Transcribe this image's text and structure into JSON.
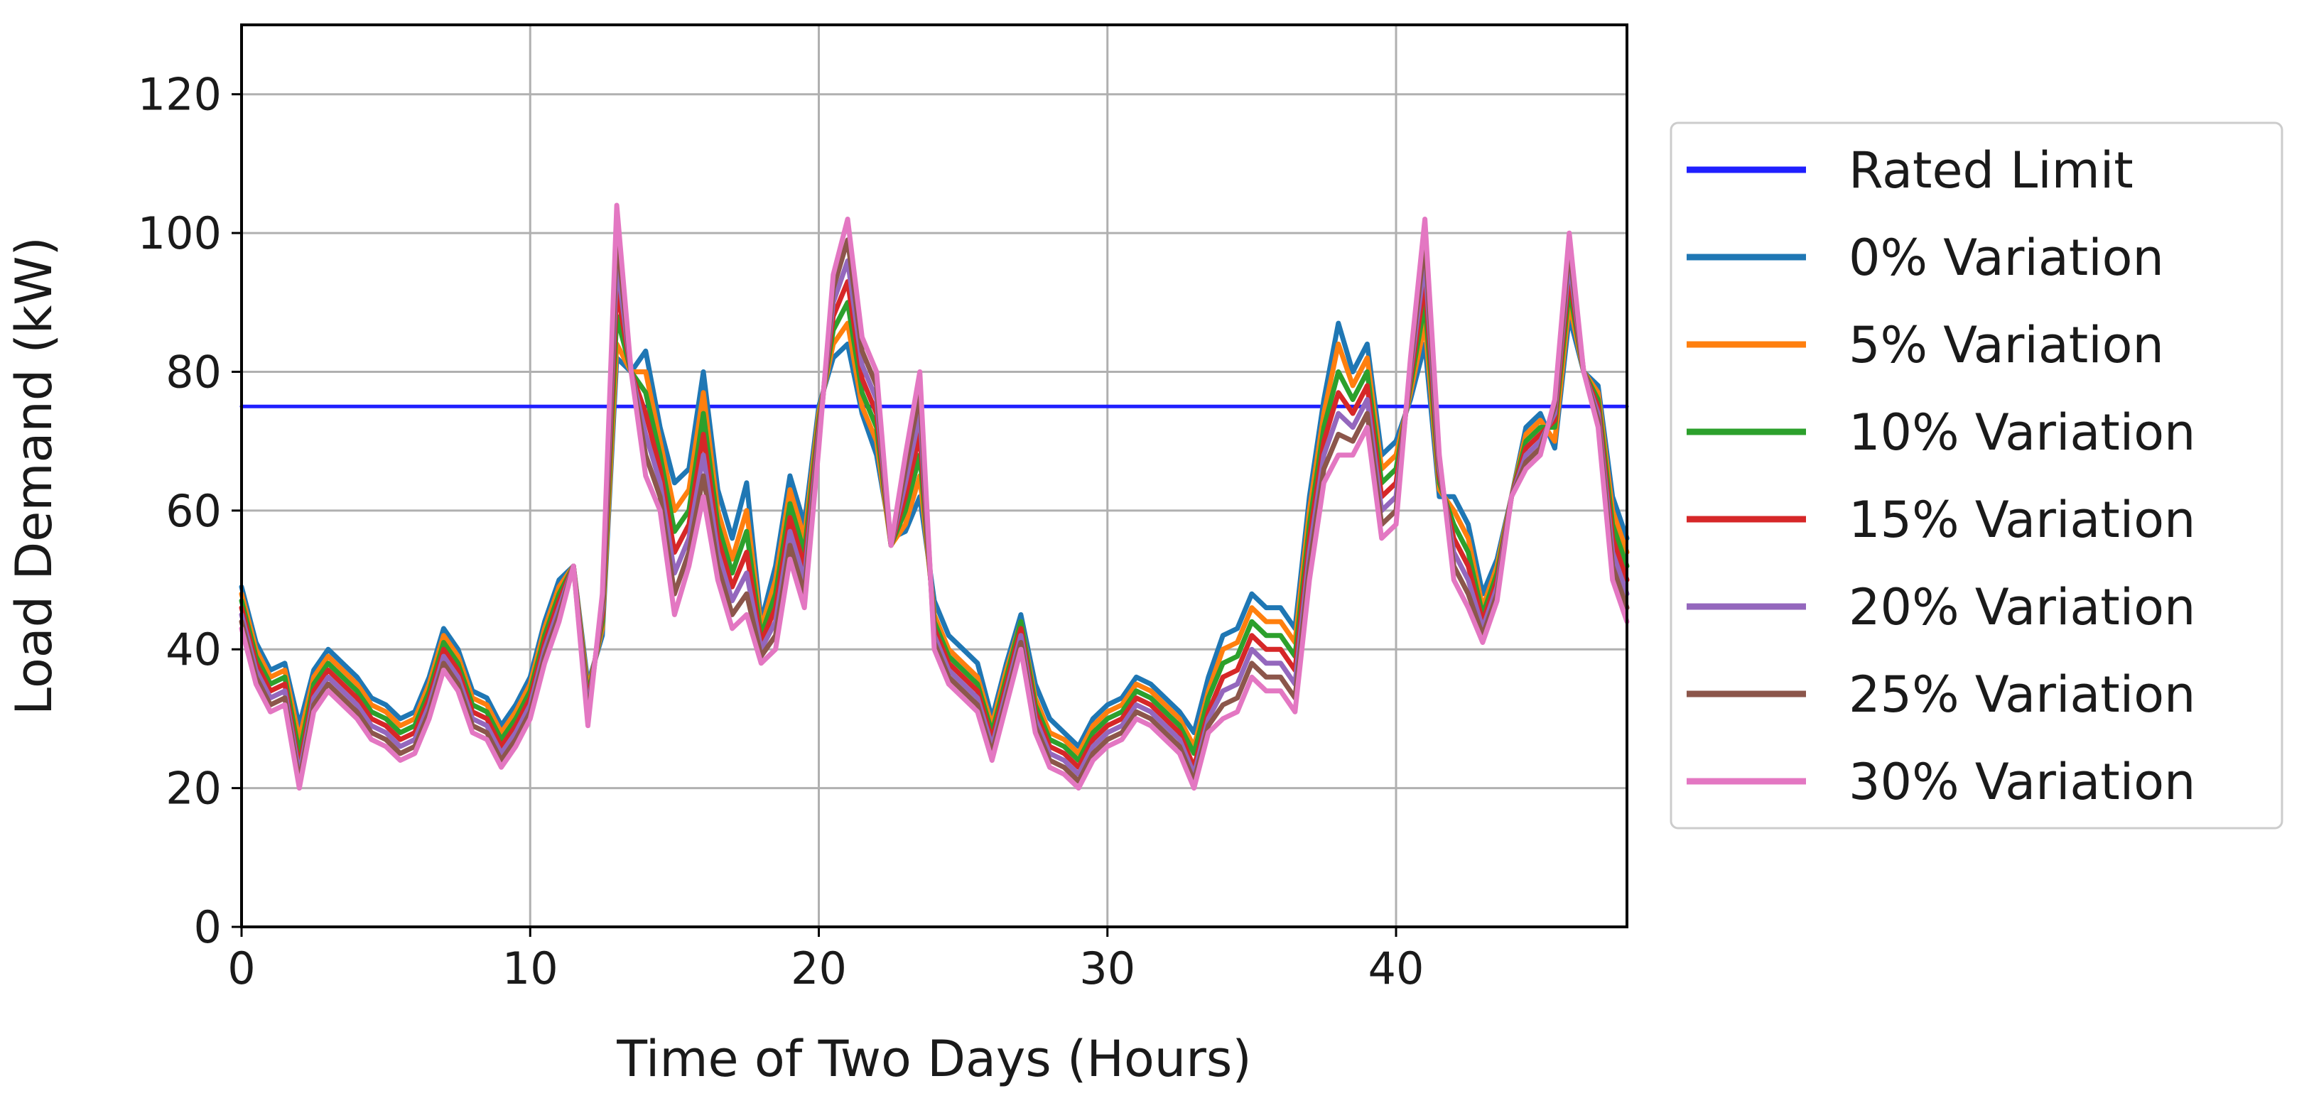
{
  "chart_data": {
    "type": "line",
    "title": "",
    "xlabel": "Time of Two Days (Hours)",
    "ylabel": "Load Demand (kW)",
    "xlim": [
      0,
      48
    ],
    "ylim": [
      0,
      130
    ],
    "xticks": [
      0,
      10,
      20,
      30,
      40
    ],
    "yticks": [
      0,
      20,
      40,
      60,
      80,
      100,
      120
    ],
    "grid": true,
    "legend_position": "outside-right",
    "x": [
      0,
      0.5,
      1,
      1.5,
      2,
      2.5,
      3,
      3.5,
      4,
      4.5,
      5,
      5.5,
      6,
      6.5,
      7,
      7.5,
      8,
      8.5,
      9,
      9.5,
      10,
      10.5,
      11,
      11.5,
      12,
      12.5,
      13,
      13.5,
      14,
      14.5,
      15,
      15.5,
      16,
      16.5,
      17,
      17.5,
      18,
      18.5,
      19,
      19.5,
      20,
      20.5,
      21,
      21.5,
      22,
      22.5,
      23,
      23.5,
      24,
      24.5,
      25,
      25.5,
      26,
      26.5,
      27,
      27.5,
      28,
      28.5,
      29,
      29.5,
      30,
      30.5,
      31,
      31.5,
      32,
      32.5,
      33,
      33.5,
      34,
      34.5,
      35,
      35.5,
      36,
      36.5,
      37,
      37.5,
      38,
      38.5,
      39,
      39.5,
      40,
      40.5,
      41,
      41.5,
      42,
      42.5,
      43,
      43.5,
      44,
      44.5,
      45,
      45.5,
      46,
      46.5,
      47,
      47.5,
      48
    ],
    "series": [
      {
        "name": "Rated Limit",
        "color": "#1f1fff",
        "values": [
          75,
          75,
          75,
          75,
          75,
          75,
          75,
          75,
          75,
          75,
          75,
          75,
          75,
          75,
          75,
          75,
          75,
          75,
          75,
          75,
          75,
          75,
          75,
          75,
          75,
          75,
          75,
          75,
          75,
          75,
          75,
          75,
          75,
          75,
          75,
          75,
          75,
          75,
          75,
          75,
          75,
          75,
          75,
          75,
          75,
          75,
          75,
          75,
          75,
          75,
          75,
          75,
          75,
          75,
          75,
          75,
          75,
          75,
          75,
          75,
          75,
          75,
          75,
          75,
          75,
          75,
          75,
          75,
          75,
          75,
          75,
          75,
          75,
          75,
          75,
          75,
          75,
          75,
          75,
          75,
          75,
          75,
          75,
          75,
          75,
          75,
          75,
          75,
          75,
          75,
          75,
          75,
          75,
          75,
          75,
          75,
          75
        ]
      },
      {
        "name": "0% Variation",
        "color": "#1f77b4",
        "values": [
          49,
          41,
          37,
          38,
          29,
          37,
          40,
          38,
          36,
          33,
          32,
          30,
          31,
          36,
          43,
          40,
          34,
          33,
          29,
          32,
          36,
          44,
          50,
          52,
          35,
          42,
          82,
          80,
          83,
          72,
          64,
          66,
          80,
          63,
          56,
          64,
          44,
          52,
          65,
          58,
          75,
          82,
          84,
          74,
          68,
          56,
          57,
          62,
          47,
          42,
          40,
          38,
          30,
          38,
          45,
          35,
          30,
          28,
          26,
          30,
          32,
          33,
          36,
          35,
          33,
          31,
          28,
          36,
          42,
          43,
          48,
          46,
          46,
          43,
          62,
          76,
          87,
          80,
          84,
          68,
          70,
          76,
          84,
          62,
          62,
          58,
          48,
          53,
          62,
          72,
          74,
          69,
          88,
          80,
          78,
          62,
          56
        ]
      },
      {
        "name": "5% Variation",
        "color": "#ff7f0e",
        "values": [
          48,
          40,
          36,
          37,
          27,
          36,
          39,
          37,
          35,
          32,
          31,
          29,
          30,
          35,
          42,
          39,
          33,
          32,
          28,
          31,
          35,
          43,
          49,
          52,
          34,
          43,
          84,
          80,
          80,
          70,
          60,
          63,
          77,
          60,
          53,
          60,
          43,
          50,
          63,
          56,
          74,
          84,
          87,
          75,
          70,
          55,
          58,
          65,
          45,
          40,
          38,
          36,
          29,
          37,
          44,
          33,
          28,
          27,
          25,
          29,
          31,
          32,
          35,
          34,
          32,
          30,
          26,
          34,
          40,
          41,
          46,
          44,
          44,
          41,
          60,
          74,
          84,
          78,
          82,
          66,
          68,
          77,
          87,
          63,
          60,
          56,
          46,
          52,
          62,
          71,
          73,
          70,
          90,
          80,
          77,
          60,
          54
        ]
      },
      {
        "name": "10% Variation",
        "color": "#2ca02c",
        "values": [
          47,
          39,
          35,
          36,
          25,
          35,
          38,
          36,
          34,
          31,
          30,
          28,
          29,
          34,
          41,
          38,
          32,
          31,
          27,
          30,
          34,
          42,
          48,
          52,
          33,
          44,
          88,
          80,
          77,
          68,
          57,
          60,
          74,
          58,
          51,
          57,
          42,
          48,
          61,
          54,
          73,
          86,
          90,
          77,
          72,
          55,
          60,
          68,
          44,
          39,
          37,
          35,
          28,
          36,
          44,
          32,
          27,
          26,
          24,
          28,
          30,
          31,
          34,
          33,
          31,
          29,
          25,
          33,
          38,
          39,
          44,
          42,
          42,
          39,
          58,
          72,
          80,
          76,
          80,
          64,
          66,
          78,
          90,
          64,
          58,
          54,
          45,
          51,
          62,
          70,
          72,
          72,
          92,
          80,
          76,
          58,
          52
        ]
      },
      {
        "name": "15% Variation",
        "color": "#d62728",
        "values": [
          46,
          38,
          34,
          35,
          23,
          34,
          37,
          35,
          33,
          30,
          29,
          27,
          28,
          33,
          40,
          37,
          31,
          30,
          26,
          29,
          33,
          41,
          47,
          52,
          32,
          45,
          92,
          80,
          74,
          66,
          54,
          58,
          71,
          56,
          49,
          54,
          41,
          46,
          59,
          52,
          72,
          88,
          93,
          79,
          74,
          55,
          62,
          71,
          43,
          38,
          36,
          34,
          27,
          35,
          43,
          31,
          26,
          25,
          23,
          27,
          29,
          30,
          33,
          32,
          30,
          28,
          23,
          31,
          36,
          37,
          42,
          40,
          40,
          37,
          56,
          70,
          77,
          74,
          78,
          62,
          64,
          79,
          93,
          65,
          56,
          52,
          44,
          50,
          62,
          69,
          71,
          73,
          94,
          80,
          75,
          56,
          50
        ]
      },
      {
        "name": "20% Variation",
        "color": "#9467bd",
        "values": [
          45,
          37,
          33,
          34,
          22,
          33,
          36,
          34,
          32,
          29,
          28,
          26,
          27,
          32,
          39,
          36,
          30,
          29,
          25,
          28,
          32,
          40,
          46,
          52,
          31,
          46,
          96,
          80,
          71,
          64,
          51,
          56,
          68,
          54,
          47,
          51,
          40,
          44,
          57,
          50,
          71,
          90,
          96,
          81,
          76,
          55,
          64,
          74,
          42,
          37,
          35,
          33,
          26,
          34,
          42,
          30,
          25,
          24,
          22,
          26,
          28,
          29,
          32,
          31,
          29,
          27,
          22,
          30,
          34,
          35,
          40,
          38,
          38,
          35,
          54,
          68,
          74,
          72,
          76,
          60,
          62,
          80,
          96,
          66,
          54,
          50,
          43,
          49,
          62,
          68,
          70,
          74,
          96,
          80,
          74,
          54,
          48
        ]
      },
      {
        "name": "25% Variation",
        "color": "#8c564b",
        "values": [
          44,
          36,
          32,
          33,
          21,
          32,
          35,
          33,
          31,
          28,
          27,
          25,
          26,
          31,
          38,
          35,
          29,
          28,
          24,
          27,
          31,
          39,
          45,
          52,
          30,
          47,
          100,
          80,
          68,
          62,
          48,
          54,
          65,
          52,
          45,
          48,
          39,
          42,
          55,
          48,
          70,
          92,
          99,
          83,
          78,
          55,
          66,
          77,
          41,
          36,
          34,
          32,
          25,
          33,
          41,
          29,
          24,
          23,
          21,
          25,
          27,
          28,
          31,
          30,
          28,
          26,
          21,
          29,
          32,
          33,
          38,
          36,
          36,
          33,
          52,
          66,
          71,
          70,
          74,
          58,
          60,
          81,
          99,
          67,
          52,
          48,
          42,
          48,
          62,
          67,
          69,
          75,
          98,
          80,
          73,
          52,
          46
        ]
      },
      {
        "name": "30% Variation",
        "color": "#e377c2",
        "values": [
          43,
          35,
          31,
          32,
          20,
          31,
          34,
          32,
          30,
          27,
          26,
          24,
          25,
          30,
          37,
          34,
          28,
          27,
          23,
          26,
          30,
          38,
          44,
          52,
          29,
          48,
          104,
          80,
          65,
          60,
          45,
          52,
          62,
          50,
          43,
          45,
          38,
          40,
          53,
          46,
          69,
          94,
          102,
          85,
          80,
          55,
          68,
          80,
          40,
          35,
          33,
          31,
          24,
          32,
          40,
          28,
          23,
          22,
          20,
          24,
          26,
          27,
          30,
          29,
          27,
          25,
          20,
          28,
          30,
          31,
          36,
          34,
          34,
          31,
          50,
          64,
          68,
          68,
          72,
          56,
          58,
          82,
          102,
          68,
          50,
          46,
          41,
          47,
          62,
          66,
          68,
          76,
          100,
          80,
          72,
          50,
          44
        ]
      }
    ]
  }
}
